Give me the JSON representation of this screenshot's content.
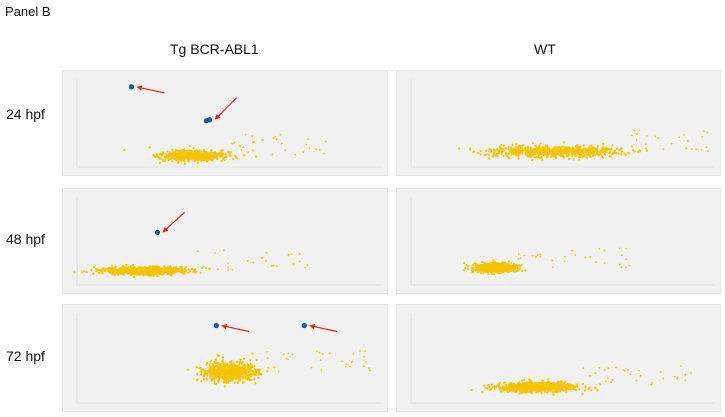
{
  "panel_title": "Panel B",
  "columns": [
    {
      "label": "Tg BCR-ABL1"
    },
    {
      "label": "WT"
    }
  ],
  "rows": [
    {
      "label": "24 hpf"
    },
    {
      "label": "48 hpf"
    },
    {
      "label": "72 hpf"
    }
  ],
  "colors": {
    "dots": "#f6c300",
    "highlight": "#1f5f9e",
    "arrow": "#e8231a",
    "plot_bg": "#f1f1f1"
  },
  "chart_data": [
    {
      "type": "scatter",
      "row": "24 hpf",
      "column": "Tg BCR-ABL1",
      "cluster": {
        "cx": 0.4,
        "cy": 0.8,
        "rx": 0.11,
        "ry": 0.05
      },
      "highlighted_points": [
        {
          "x": 0.21,
          "y": 0.15
        },
        {
          "x": 0.44,
          "y": 0.47
        },
        {
          "x": 0.45,
          "y": 0.46
        }
      ],
      "arrows": 2
    },
    {
      "type": "scatter",
      "row": "24 hpf",
      "column": "WT",
      "cluster": {
        "cx": 0.48,
        "cy": 0.76,
        "rx": 0.22,
        "ry": 0.06
      },
      "highlighted_points": [],
      "arrows": 0
    },
    {
      "type": "scatter",
      "row": "48 hpf",
      "column": "Tg BCR-ABL1",
      "cluster": {
        "cx": 0.25,
        "cy": 0.77,
        "rx": 0.15,
        "ry": 0.04
      },
      "highlighted_points": [
        {
          "x": 0.29,
          "y": 0.41
        }
      ],
      "arrows": 1
    },
    {
      "type": "scatter",
      "row": "48 hpf",
      "column": "WT",
      "cluster": {
        "cx": 0.3,
        "cy": 0.74,
        "rx": 0.07,
        "ry": 0.05
      },
      "highlighted_points": [],
      "arrows": 0
    },
    {
      "type": "scatter",
      "row": "72 hpf",
      "column": "Tg BCR-ABL1",
      "cluster": {
        "cx": 0.51,
        "cy": 0.62,
        "rx": 0.09,
        "ry": 0.1
      },
      "highlighted_points": [
        {
          "x": 0.47,
          "y": 0.19
        },
        {
          "x": 0.74,
          "y": 0.19
        }
      ],
      "arrows": 2
    },
    {
      "type": "scatter",
      "row": "72 hpf",
      "column": "WT",
      "cluster": {
        "cx": 0.43,
        "cy": 0.76,
        "rx": 0.14,
        "ry": 0.05
      },
      "highlighted_points": [],
      "arrows": 0
    }
  ]
}
